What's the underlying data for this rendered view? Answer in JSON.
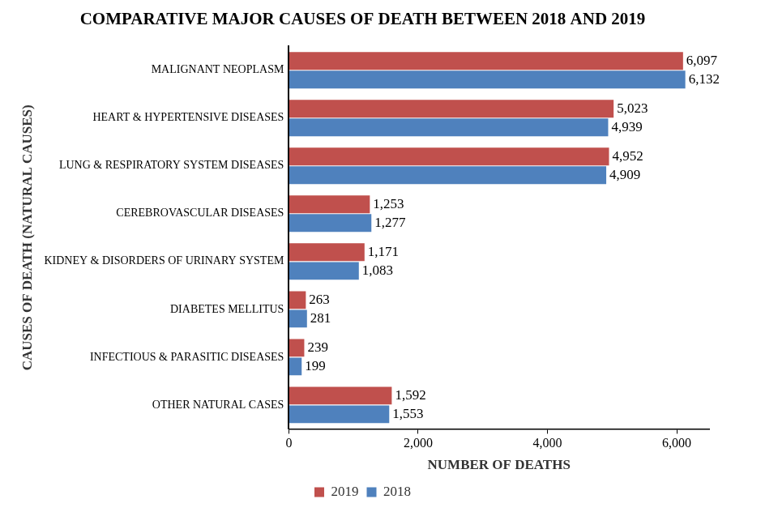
{
  "chart_data": {
    "type": "bar",
    "orientation": "horizontal",
    "title": "COMPARATIVE MAJOR CAUSES OF DEATH BETWEEN 2018 AND 2019",
    "x_label": "NUMBER OF DEATHS",
    "y_label": "CAUSES OF DEATH (NATURAL CAUSES)",
    "categories": [
      "MALIGNANT NEOPLASM",
      "HEART & HYPERTENSIVE DISEASES",
      "LUNG & RESPIRATORY SYSTEM DISEASES",
      "CEREBROVASCULAR DISEASES",
      "KIDNEY & DISORDERS OF URINARY SYSTEM",
      "DIABETES MELLITUS",
      "INFECTIOUS & PARASITIC DISEASES",
      "OTHER NATURAL CASES"
    ],
    "series": [
      {
        "name": "2019",
        "color": "#c0504d",
        "values": [
          6097,
          5023,
          4952,
          1253,
          1171,
          263,
          239,
          1592
        ],
        "value_labels": [
          "6,097",
          "5,023",
          "4,952",
          "1,253",
          "1,171",
          "263",
          "239",
          "1,592"
        ]
      },
      {
        "name": "2018",
        "color": "#4f81bd",
        "values": [
          6132,
          4939,
          4909,
          1277,
          1083,
          281,
          199,
          1553
        ],
        "value_labels": [
          "6,132",
          "4,939",
          "4,909",
          "1,277",
          "1,083",
          "281",
          "199",
          "1,553"
        ]
      }
    ],
    "xlim": [
      0,
      6500
    ],
    "xticks": [
      0,
      {
        "value": 2000,
        "label": "2,000"
      },
      {
        "value": 4000,
        "label": "4,000"
      },
      {
        "value": 6000,
        "label": "6,000"
      }
    ],
    "grid": false,
    "legend": "bottom",
    "data_labels": true
  }
}
